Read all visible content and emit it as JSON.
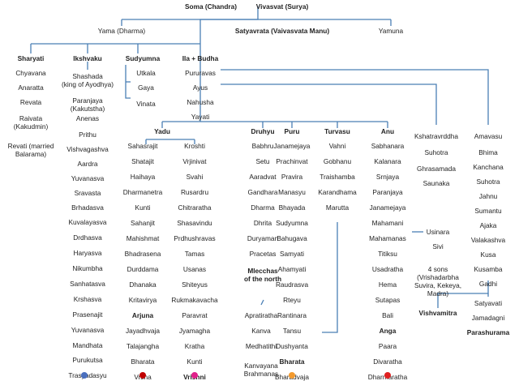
{
  "names": {
    "soma": "Soma (Chandra)",
    "vivasvat": "Vivasvat (Surya)",
    "yama": "Yama (Dharma)",
    "satyavrata": "Satyavrata (Vaivasvata Manu)",
    "yamuna": "Yamuna",
    "sharyati": "Sharyati",
    "ikshvaku": "Ikshvaku",
    "sudyumna": "Sudyumna",
    "ila_budha": "Ila + Budha",
    "yadu": "Yadu",
    "druhyu": "Druhyu",
    "puru": "Puru",
    "turvasu": "Turvasu",
    "anu": "Anu"
  },
  "sharyati_line": [
    "Chyavana",
    "Anaratta",
    "Revata",
    "Raivata\n(Kakudmin)",
    "Revati (married\nBalarama)"
  ],
  "ikshvaku_line": [
    "Shashada\n(king of Ayodhya)",
    "Paranjaya\n(Kakutstha)",
    "Anenas",
    "Prithu",
    "Vishvagashva",
    "Aardra",
    "Yuvanasva",
    "Sravasta",
    "Brhadasva",
    "Kuvalayasva",
    "Drdhasva",
    "Haryasva",
    "Nikumbha",
    "Sanhatasva",
    "Krshasva",
    "Prasenajit",
    "Yuvanasva",
    "Mandhata",
    "Purukutsa",
    "Trasyadasyu"
  ],
  "sudyumna_line": [
    "Utkala",
    "Gaya",
    "Vinata"
  ],
  "main_line": [
    "Pururavas",
    "Ayus",
    "Nahusha",
    "Yayati"
  ],
  "yadu_haihaya": [
    "Sahasrajit",
    "Shatajit",
    "Haihaya",
    "Dharmanetra",
    "Kunti",
    "Sahanjit",
    "Mahishmat",
    "Bhadrasena",
    "Durddama",
    "Dhanaka",
    "Kritavirya",
    "Arjuna",
    "Jayadhvaja",
    "Talajangha",
    "Bharata",
    "Vrsha"
  ],
  "yadu_kroshti": [
    "Kroshti",
    "Vrjinivat",
    "Svahi",
    "Rusardru",
    "Chitraratha",
    "Shasavindu",
    "Prdhushravas",
    "Tamas",
    "Usanas",
    "Shiteyus",
    "Rukmakavacha",
    "Paravrat",
    "Jyamagha",
    "Kratha",
    "Kunti",
    "Vrishni"
  ],
  "druhyu_line": [
    "Babhru",
    "Setu",
    "Aaradvat",
    "Gandhara",
    "Dharma",
    "Dhrita",
    "Duryaman",
    "Pracetas",
    "Mlecchas\nof the north"
  ],
  "puru_line": [
    "Janamejaya",
    "Prachinvat",
    "Pravira",
    "Manasyu",
    "Bhayada",
    "Sudyumna",
    "Bahugava",
    "Samyati",
    "Ahamyati",
    "Raudrasva",
    "Rteyu",
    "Rantinara",
    "Tansu",
    "Dushyanta",
    "Bharata",
    "Bharadvaja"
  ],
  "puru_branch": [
    "Apratiratha",
    "Kanva",
    "Medhatithi",
    "Kanvayana\nBrahmanas"
  ],
  "turvasu_line": [
    "Vahni",
    "Gobhanu",
    "Traishamba",
    "Karandhama",
    "Marutta"
  ],
  "anu_line": [
    "Sabhanara",
    "Kalanara",
    "Srnjaya",
    "Paranjaya",
    "Janamejaya",
    "Mahamani",
    "Mahamanas",
    "Titiksu",
    "Usadratha",
    "Hema",
    "Sutapas",
    "Bali",
    "Anga",
    "Paara",
    "Divaratha",
    "Dharmaratha"
  ],
  "usinara_line": [
    "Usinara",
    "Sivi",
    "4 sons\n(Vrishadarbha\nSuvira, Kekeya,\nMadra)"
  ],
  "kshatra_line": [
    "Kshatravrddha",
    "Suhotra",
    "Ghrasamada",
    "Saunaka"
  ],
  "amavasu_line": [
    "Amavasu",
    "Bhima",
    "Kanchana",
    "Suhotra",
    "Jahnu",
    "Sumantu",
    "Ajaka",
    "Valakashva",
    "Kusa",
    "Kusamba",
    "Gadhi"
  ],
  "vishvamitra": "Vishvamitra",
  "bhrigu_line": [
    "Satyavati",
    "Jamadagni",
    "Parashurama"
  ],
  "dot_colors": {
    "ikshvaku": "#4a6fbe",
    "haihaya": "#c00000",
    "vrishni": "#e0208a",
    "puru": "#f39a2e",
    "anu": "#e02020"
  }
}
